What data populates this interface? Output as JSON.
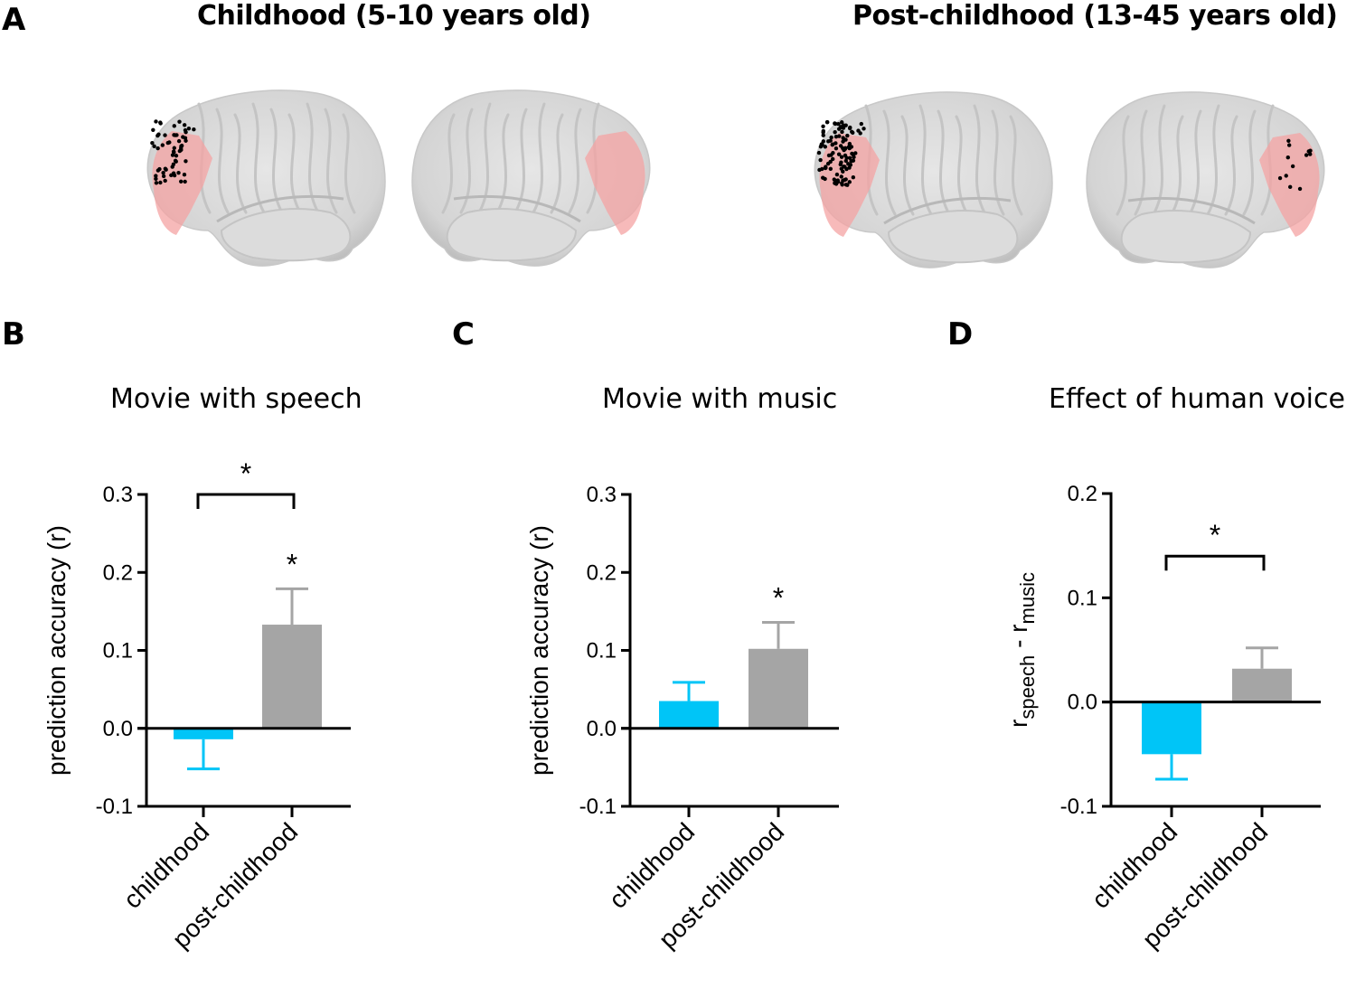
{
  "panels": {
    "a": {
      "letter": "A",
      "groups": [
        {
          "title": "Childhood  (5-10 years old)",
          "views": [
            "left-hemisphere-lateral",
            "right-hemisphere-lateral"
          ],
          "electrodes_left": "dense",
          "electrodes_right": "none"
        },
        {
          "title": "Post-childhood (13-45 years old)",
          "views": [
            "left-hemisphere-lateral",
            "right-hemisphere-lateral"
          ],
          "electrodes_left": "dense",
          "electrodes_right": "sparse"
        }
      ],
      "colors": {
        "brain": "#d9d9d9",
        "region": "#f4a3a3",
        "electrode": "#000000"
      }
    },
    "b": {
      "letter": "B",
      "title": "Movie with speech"
    },
    "c": {
      "letter": "C",
      "title": "Movie with music"
    },
    "d": {
      "letter": "D",
      "title": "Effect of human voice"
    }
  },
  "colors": {
    "childhood": "#00c5f7",
    "post_childhood": "#a5a5a5",
    "axis": "#000000"
  },
  "chart_data": [
    {
      "type": "bar",
      "panel": "B",
      "title": "Movie with speech",
      "xlabel": "",
      "ylabel": "prediction accuracy (r)",
      "categories": [
        "childhood",
        "post-childhood"
      ],
      "values": [
        -0.014,
        0.133
      ],
      "errors": [
        0.038,
        0.046
      ],
      "ylim": [
        -0.1,
        0.3
      ],
      "yticks": [
        -0.1,
        0.0,
        0.1,
        0.2,
        0.3
      ],
      "ytick_labels": [
        "-0.1",
        "0.0",
        "0.1",
        "0.2",
        "0.3"
      ],
      "annotations": {
        "bracket": {
          "between": [
            "childhood",
            "post-childhood"
          ],
          "label": "*",
          "y": 0.3
        },
        "bar_stars": [
          null,
          "*"
        ]
      },
      "grid": false
    },
    {
      "type": "bar",
      "panel": "C",
      "title": "Movie with music",
      "xlabel": "",
      "ylabel": "prediction accuracy (r)",
      "categories": [
        "childhood",
        "post-childhood"
      ],
      "values": [
        0.035,
        0.102
      ],
      "errors": [
        0.024,
        0.034
      ],
      "ylim": [
        -0.1,
        0.3
      ],
      "yticks": [
        -0.1,
        0.0,
        0.1,
        0.2,
        0.3
      ],
      "ytick_labels": [
        "-0.1",
        "0.0",
        "0.1",
        "0.2",
        "0.3"
      ],
      "annotations": {
        "bracket": null,
        "bar_stars": [
          null,
          "*"
        ]
      },
      "grid": false
    },
    {
      "type": "bar",
      "panel": "D",
      "title": "Effect of human voice",
      "xlabel": "",
      "ylabel": "r_speech - r_music",
      "ylabel_parts": {
        "r1": "r",
        "sub1": "speech",
        "sep": " - ",
        "r2": "r",
        "sub2": "music"
      },
      "categories": [
        "childhood",
        "post-childhood"
      ],
      "values": [
        -0.05,
        0.032
      ],
      "errors": [
        0.024,
        0.02
      ],
      "ylim": [
        -0.1,
        0.2
      ],
      "yticks": [
        -0.1,
        0.0,
        0.1,
        0.2
      ],
      "ytick_labels": [
        "-0.1",
        "0.0",
        "0.1",
        "0.2"
      ],
      "annotations": {
        "bracket": {
          "between": [
            "childhood",
            "post-childhood"
          ],
          "label": "*",
          "y": 0.14
        },
        "bar_stars": [
          null,
          null
        ]
      },
      "grid": false
    }
  ]
}
